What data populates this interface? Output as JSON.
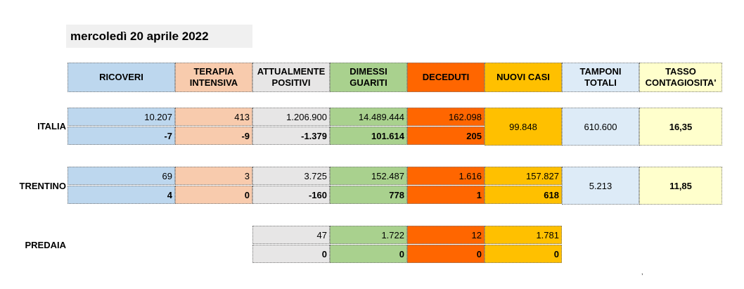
{
  "date": "mercoledì 20 aprile 2022",
  "headers": {
    "ricoveri": "RICOVERI",
    "terapia": "TERAPIA INTENSIVA",
    "positivi": "ATTUALMENTE POSITIVI",
    "dimessi": "DIMESSI GUARITI",
    "deceduti": "DECEDUTI",
    "nuovi": "NUOVI CASI",
    "tamponi": "TAMPONI TOTALI",
    "tasso": "TASSO CONTAGIOSITA'"
  },
  "italia": {
    "label": "ITALIA",
    "totals": {
      "ricoveri": "10.207",
      "terapia": "413",
      "positivi": "1.206.900",
      "dimessi": "14.489.444",
      "deceduti": "162.098"
    },
    "deltas": {
      "ricoveri": "-7",
      "terapia": "-9",
      "positivi": "-1.379",
      "dimessi": "101.614",
      "deceduti": "205"
    },
    "nuovi": "99.848",
    "tamponi": "610.600",
    "tasso": "16,35"
  },
  "trentino": {
    "label": "TRENTINO",
    "totals": {
      "ricoveri": "69",
      "terapia": "3",
      "positivi": "3.725",
      "dimessi": "152.487",
      "deceduti": "1.616",
      "nuovi": "157.827"
    },
    "deltas": {
      "ricoveri": "4",
      "terapia": "0",
      "positivi": "-160",
      "dimessi": "778",
      "deceduti": "1",
      "nuovi": "618"
    },
    "tamponi": "5.213",
    "tasso": "11,85"
  },
  "predaia": {
    "label": "PREDAIA",
    "totals": {
      "positivi": "47",
      "dimessi": "1.722",
      "deceduti": "12",
      "nuovi": "1.781"
    },
    "deltas": {
      "positivi": "0",
      "dimessi": "0",
      "deceduti": "0",
      "nuovi": "0"
    }
  },
  "footnote_mark": ","
}
